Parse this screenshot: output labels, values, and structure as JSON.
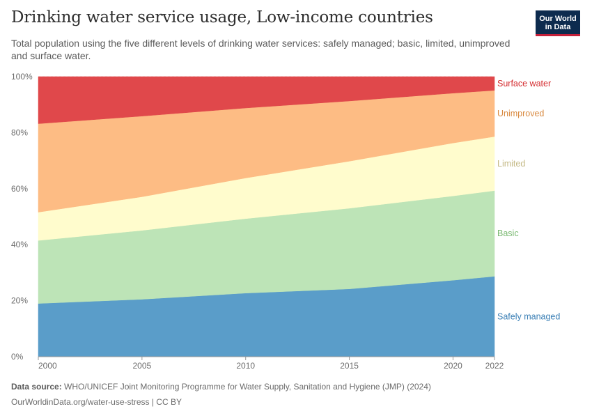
{
  "header": {
    "title": "Drinking water service usage, Low-income countries",
    "subtitle": "Total population using the five different levels of drinking water services: safely managed; basic, limited, unimproved and surface water.",
    "logo_line1": "Our World",
    "logo_line2": "in Data"
  },
  "footer": {
    "source_label": "Data source:",
    "source_text": "WHO/UNICEF Joint Monitoring Programme for Water Supply, Sanitation and Hygiene (JMP) (2024)",
    "credit": "OurWorldinData.org/water-use-stress | CC BY"
  },
  "chart_data": {
    "type": "area",
    "stacked": true,
    "x": [
      2000,
      2005,
      2010,
      2015,
      2020,
      2022
    ],
    "xticks": [
      "2000",
      "2005",
      "2010",
      "2015",
      "2020",
      "2022"
    ],
    "yticks": [
      "0%",
      "20%",
      "40%",
      "60%",
      "80%",
      "100%"
    ],
    "ylim": [
      0,
      100
    ],
    "grid": true,
    "series": [
      {
        "name": "Safely managed",
        "color": "#5a9dc9",
        "label_color": "#3a7fb5",
        "values": [
          19.0,
          20.5,
          22.7,
          24.2,
          27.3,
          28.7
        ]
      },
      {
        "name": "Basic",
        "color": "#bde4b7",
        "label_color": "#78b86f",
        "values": [
          22.5,
          24.6,
          26.6,
          28.8,
          30.1,
          30.6
        ]
      },
      {
        "name": "Limited",
        "color": "#fffccd",
        "label_color": "#c4b985",
        "values": [
          10.1,
          12.0,
          14.5,
          16.8,
          18.9,
          19.3
        ]
      },
      {
        "name": "Unimproved",
        "color": "#fdbc84",
        "label_color": "#d98a41",
        "values": [
          31.6,
          28.8,
          25.0,
          21.5,
          17.8,
          16.5
        ]
      },
      {
        "name": "Surface water",
        "color": "#e0484b",
        "label_color": "#d42b2e",
        "values": [
          16.8,
          14.1,
          11.2,
          8.7,
          5.9,
          4.9
        ]
      }
    ]
  }
}
